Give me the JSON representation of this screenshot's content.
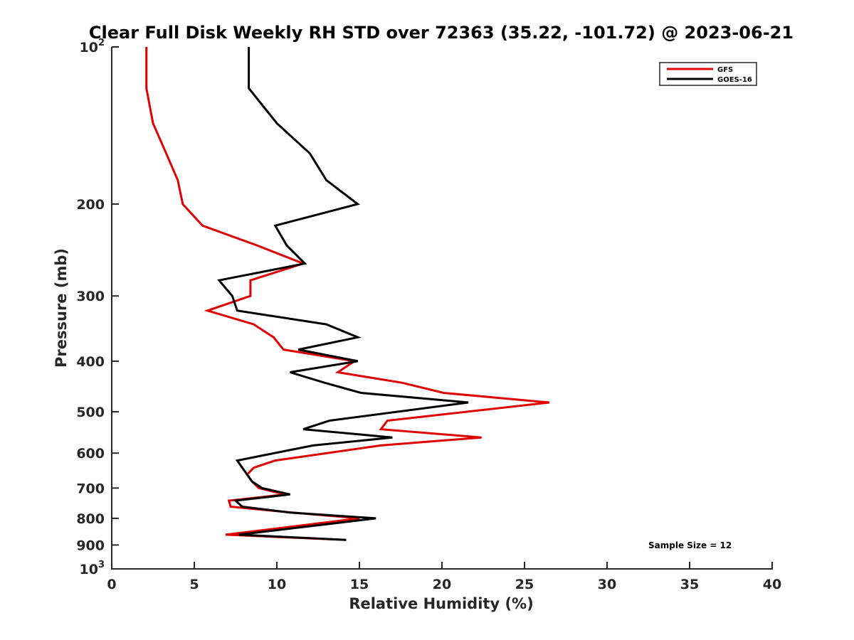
{
  "chart_data": {
    "type": "line",
    "title": "Clear Full Disk Weekly RH STD over 72363 (35.22, -101.72) @ 2023-06-21",
    "xlabel": "Relative Humidity (%)",
    "ylabel": "Pressure (mb)",
    "xlim": [
      0,
      40
    ],
    "ylim": [
      100,
      1000
    ],
    "yscale": "log",
    "y_reversed": true,
    "grid": false,
    "x_ticks": [
      0,
      5,
      10,
      15,
      20,
      25,
      30,
      35,
      40
    ],
    "x_tick_labels": [
      "0",
      "5",
      "10",
      "15",
      "20",
      "25",
      "30",
      "35",
      "40"
    ],
    "y_ticks": [
      100,
      200,
      300,
      400,
      500,
      600,
      700,
      800,
      900,
      1000
    ],
    "y_tick_labels": [
      {
        "base": "10",
        "exp": "2"
      },
      {
        "base": "200",
        "exp": ""
      },
      {
        "base": "300",
        "exp": ""
      },
      {
        "base": "400",
        "exp": ""
      },
      {
        "base": "500",
        "exp": ""
      },
      {
        "base": "600",
        "exp": ""
      },
      {
        "base": "700",
        "exp": ""
      },
      {
        "base": "800",
        "exp": ""
      },
      {
        "base": "900",
        "exp": ""
      },
      {
        "base": "10",
        "exp": "3"
      }
    ],
    "legend": {
      "position": "top-right",
      "entries": [
        "GFS",
        "GOES-16"
      ]
    },
    "annotation": "Sample Size = 12",
    "series": [
      {
        "name": "GFS",
        "color": "#e00000",
        "pressure": [
          100,
          120,
          140,
          160,
          180,
          200,
          220,
          240,
          260,
          280,
          300,
          320,
          340,
          360,
          380,
          400,
          420,
          440,
          460,
          480,
          520,
          540,
          560,
          580,
          620,
          640,
          660,
          680,
          700,
          720,
          740,
          760,
          780,
          800,
          860,
          880
        ],
        "values": [
          2.1,
          2.1,
          2.5,
          3.3,
          4.0,
          4.3,
          5.5,
          8.8,
          11.6,
          8.4,
          8.4,
          5.8,
          8.6,
          9.8,
          10.4,
          14.7,
          13.7,
          17.6,
          20.1,
          26.5,
          16.7,
          16.3,
          22.4,
          16.3,
          9.9,
          8.6,
          8.2,
          8.5,
          8.9,
          10.5,
          7.1,
          7.2,
          10.9,
          15.0,
          6.9,
          14.2
        ]
      },
      {
        "name": "GOES-16",
        "color": "#000000",
        "pressure": [
          100,
          120,
          140,
          160,
          180,
          200,
          220,
          240,
          260,
          280,
          300,
          320,
          340,
          360,
          380,
          400,
          420,
          440,
          460,
          480,
          520,
          540,
          560,
          580,
          620,
          680,
          700,
          720,
          740,
          760,
          780,
          800,
          860,
          880
        ],
        "values": [
          8.3,
          8.3,
          10.0,
          12.0,
          13.0,
          14.9,
          9.9,
          10.6,
          11.7,
          6.5,
          7.3,
          7.6,
          13.0,
          14.9,
          11.3,
          14.9,
          10.8,
          12.9,
          15.1,
          21.6,
          13.2,
          11.6,
          17.0,
          12.2,
          7.6,
          8.5,
          9.1,
          10.8,
          7.5,
          7.9,
          10.8,
          16.0,
          7.7,
          14.2
        ]
      }
    ]
  }
}
